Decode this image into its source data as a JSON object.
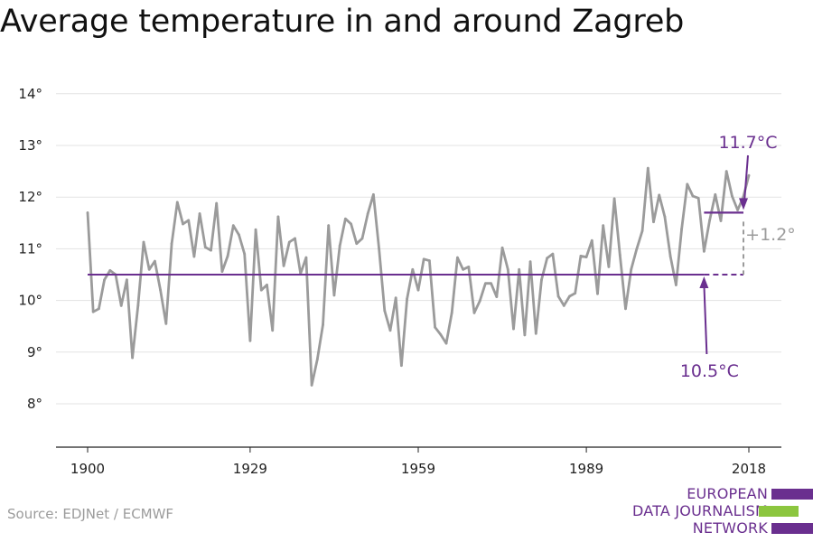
{
  "title": "Average temperature in and around Zagreb",
  "source": "Source: EDJNet / ECMWF",
  "logo": {
    "lines": [
      "EUROPEAN",
      "DATA JOURNALISM",
      "NETWORK"
    ],
    "colors": [
      "#6a2f8f",
      "#8cc63f",
      "#6a2f8f"
    ]
  },
  "chart_data": {
    "type": "line",
    "title": "Average temperature in and around Zagreb",
    "xlabel": "",
    "ylabel": "",
    "xlim": [
      1900,
      2018
    ],
    "ylim": [
      7,
      14
    ],
    "x_ticks": [
      1900,
      1929,
      1959,
      1989,
      2018
    ],
    "x_tick_labels": [
      "1900",
      "1929",
      "1959",
      "1989",
      "2018"
    ],
    "y_ticks": [
      8,
      9,
      10,
      11,
      12,
      13,
      14
    ],
    "y_tick_labels": [
      "8°",
      "9°",
      "10°",
      "11°",
      "12°",
      "13°",
      "14°"
    ],
    "grid": true,
    "series": [
      {
        "color": "#9b9b9b",
        "x": [
          1900,
          1901,
          1902,
          1903,
          1904,
          1905,
          1906,
          1907,
          1908,
          1909,
          1910,
          1911,
          1912,
          1913,
          1914,
          1915,
          1916,
          1917,
          1918,
          1919,
          1920,
          1921,
          1922,
          1923,
          1924,
          1925,
          1926,
          1927,
          1928,
          1929,
          1930,
          1931,
          1932,
          1933,
          1934,
          1935,
          1936,
          1937,
          1938,
          1939,
          1940,
          1941,
          1942,
          1943,
          1944,
          1945,
          1946,
          1947,
          1948,
          1949,
          1950,
          1951,
          1952,
          1953,
          1954,
          1955,
          1956,
          1957,
          1958,
          1959,
          1960,
          1961,
          1962,
          1963,
          1964,
          1965,
          1966,
          1967,
          1968,
          1969,
          1970,
          1971,
          1972,
          1973,
          1974,
          1975,
          1976,
          1977,
          1978,
          1979,
          1980,
          1981,
          1982,
          1983,
          1984,
          1985,
          1986,
          1987,
          1988,
          1989,
          1990,
          1991,
          1992,
          1993,
          1994,
          1995,
          1996,
          1997,
          1998,
          1999,
          2000,
          2001,
          2002,
          2003,
          2004,
          2005,
          2006,
          2007,
          2008,
          2009,
          2010,
          2011,
          2012,
          2013,
          2014,
          2015,
          2016,
          2017,
          2018
        ],
        "values": [
          11.7,
          9.78,
          9.84,
          10.4,
          10.58,
          10.5,
          9.9,
          10.4,
          8.89,
          9.9,
          11.13,
          10.6,
          10.76,
          10.2,
          9.55,
          11.1,
          11.9,
          11.48,
          11.55,
          10.85,
          11.68,
          11.03,
          10.97,
          11.88,
          10.56,
          10.86,
          11.45,
          11.27,
          10.9,
          9.22,
          11.37,
          10.2,
          10.3,
          9.42,
          11.62,
          10.67,
          11.13,
          11.2,
          10.52,
          10.83,
          8.36,
          8.86,
          9.53,
          11.45,
          10.1,
          11.06,
          11.58,
          11.48,
          11.1,
          11.2,
          11.68,
          12.05,
          11.0,
          9.8,
          9.42,
          10.05,
          8.74,
          10.03,
          10.6,
          10.2,
          10.8,
          10.77,
          9.48,
          9.34,
          9.17,
          9.76,
          10.83,
          10.6,
          10.65,
          9.76,
          9.99,
          10.33,
          10.33,
          10.07,
          11.02,
          10.6,
          9.45,
          10.6,
          9.33,
          10.75,
          9.36,
          10.4,
          10.82,
          10.9,
          10.08,
          9.9,
          10.08,
          10.14,
          10.86,
          10.84,
          11.16,
          10.13,
          11.45,
          10.65,
          11.97,
          10.88,
          9.84,
          10.6,
          11.0,
          11.35,
          12.56,
          11.52,
          12.04,
          11.62,
          10.85,
          10.3,
          11.38,
          12.25,
          12.02,
          11.98,
          10.95,
          11.55,
          12.05,
          11.54,
          12.5,
          12.02,
          11.75,
          12.0,
          12.42
        ]
      }
    ],
    "reference_lines": [
      {
        "y": 10.5,
        "x_start": 1900,
        "x_end": 2018,
        "color": "#6a2f8f",
        "solid_until": 2010,
        "label": "10.5°C"
      },
      {
        "y": 11.7,
        "x_start": 2010,
        "x_end": 2018,
        "color": "#6a2f8f",
        "label": "11.7°C"
      }
    ],
    "difference_label": "+1.2°",
    "difference_color": "#9b9b9b"
  }
}
